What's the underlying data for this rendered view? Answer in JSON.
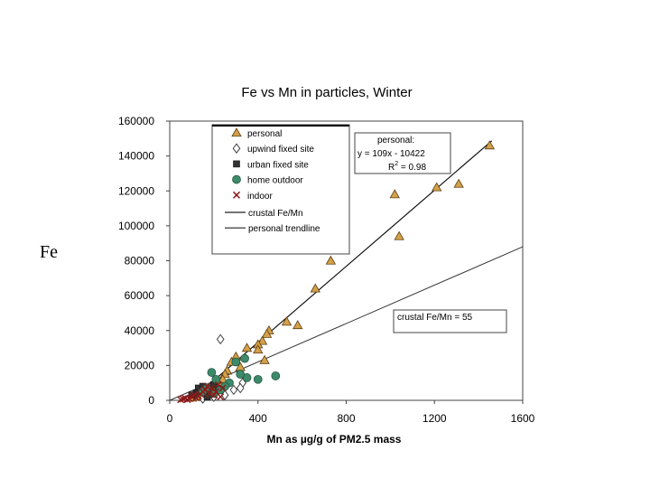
{
  "side_label": "Fe",
  "chart_data": {
    "type": "scatter",
    "title": "Fe vs Mn in particles, Winter",
    "xlabel": "Mn as µg/g of PM2.5 mass",
    "ylabel": "Fe",
    "xlim": [
      0,
      1600
    ],
    "ylim": [
      0,
      160000
    ],
    "x_ticks": [
      0,
      400,
      800,
      1200,
      1600
    ],
    "y_ticks": [
      0,
      20000,
      40000,
      60000,
      80000,
      100000,
      120000,
      140000,
      160000
    ],
    "legend_position": "top-center",
    "series": [
      {
        "name": "personal",
        "marker": "triangle",
        "color": "#d4a04a",
        "points": [
          [
            1450,
            146000
          ],
          [
            1310,
            124000
          ],
          [
            1210,
            122000
          ],
          [
            1020,
            118000
          ],
          [
            1040,
            94000
          ],
          [
            730,
            80000
          ],
          [
            660,
            64000
          ],
          [
            580,
            43000
          ],
          [
            530,
            45000
          ],
          [
            450,
            40000
          ],
          [
            440,
            38000
          ],
          [
            420,
            34000
          ],
          [
            400,
            32000
          ],
          [
            400,
            29000
          ],
          [
            350,
            30000
          ],
          [
            430,
            23000
          ],
          [
            300,
            25000
          ],
          [
            280,
            22000
          ],
          [
            320,
            19000
          ],
          [
            260,
            17000
          ],
          [
            250,
            15000
          ],
          [
            240,
            12000
          ],
          [
            220,
            10000
          ],
          [
            200,
            8000
          ],
          [
            180,
            6000
          ],
          [
            160,
            5000
          ],
          [
            150,
            4000
          ],
          [
            130,
            3000
          ],
          [
            120,
            2000
          ],
          [
            100,
            1500
          ]
        ]
      },
      {
        "name": "upwind fixed site",
        "marker": "diamond",
        "color": "#ffffff",
        "points": [
          [
            230,
            35000
          ],
          [
            330,
            10000
          ],
          [
            320,
            7000
          ],
          [
            290,
            6000
          ],
          [
            250,
            3000
          ],
          [
            200,
            2000
          ],
          [
            150,
            1000
          ]
        ]
      },
      {
        "name": "urban fixed site",
        "marker": "square",
        "color": "#333333",
        "points": [
          [
            130,
            7000
          ],
          [
            150,
            8000
          ],
          [
            180,
            5000
          ],
          [
            200,
            9000
          ],
          [
            120,
            4000
          ],
          [
            220,
            6000
          ],
          [
            100,
            3000
          ],
          [
            170,
            2000
          ]
        ]
      },
      {
        "name": "home outdoor",
        "marker": "circle",
        "color": "#3d8a6a",
        "points": [
          [
            480,
            14000
          ],
          [
            400,
            12000
          ],
          [
            350,
            13000
          ],
          [
            320,
            15000
          ],
          [
            340,
            24000
          ],
          [
            300,
            22000
          ],
          [
            270,
            10000
          ],
          [
            250,
            8000
          ],
          [
            190,
            16000
          ],
          [
            210,
            12000
          ],
          [
            230,
            6000
          ],
          [
            170,
            7000
          ],
          [
            150,
            5000
          ],
          [
            200,
            4000
          ]
        ]
      },
      {
        "name": "indoor",
        "marker": "x",
        "color": "#8b1a1a",
        "points": [
          [
            230,
            2000
          ],
          [
            200,
            3000
          ],
          [
            180,
            4000
          ],
          [
            160,
            6000
          ],
          [
            150,
            5000
          ],
          [
            140,
            3500
          ],
          [
            130,
            2500
          ],
          [
            120,
            1500
          ],
          [
            110,
            3000
          ],
          [
            100,
            2000
          ],
          [
            90,
            1000
          ],
          [
            80,
            500
          ],
          [
            70,
            1200
          ],
          [
            60,
            800
          ],
          [
            50,
            400
          ],
          [
            170,
            8000
          ],
          [
            190,
            7000
          ],
          [
            210,
            5000
          ],
          [
            220,
            9000
          ],
          [
            240,
            7000
          ]
        ]
      }
    ],
    "lines": [
      {
        "name": "crustal Fe/Mn",
        "slope": 55,
        "intercept": 0,
        "x_range": [
          0,
          1600
        ]
      },
      {
        "name": "personal trendline",
        "slope": 109,
        "intercept": -10422,
        "x_range": [
          100,
          1460
        ]
      }
    ],
    "annotations": {
      "personal_box": [
        "personal:",
        "y = 109x - 10422",
        "R",
        "2",
        " = 0.98"
      ],
      "crustal_box": "crustal Fe/Mn = 55"
    }
  }
}
